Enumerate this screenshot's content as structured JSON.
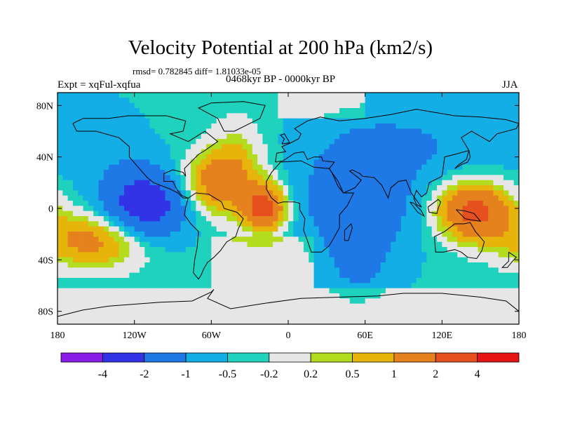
{
  "chart_data": {
    "type": "contour-map",
    "title": "Velocity Potential at 200 hPa (km2/s)",
    "stats": "rmsd= 0.782845  diff= 1.81033e-05",
    "experiment": "Expt = xqFul-xqfua",
    "period": "0468kyr BP - 0000kyr BP",
    "season": "JJA",
    "projection": "cylindrical equidistant",
    "x_axis": {
      "range": [
        -180,
        180
      ],
      "ticks": [
        -180,
        -120,
        -60,
        0,
        60,
        120,
        180
      ],
      "tick_labels": [
        "180",
        "120W",
        "60W",
        "0",
        "60E",
        "120E",
        "180"
      ]
    },
    "y_axis": {
      "range": [
        -90,
        90
      ],
      "ticks": [
        80,
        40,
        0,
        -40,
        -80
      ],
      "tick_labels": [
        "80N",
        "40N",
        "0",
        "40S",
        "80S"
      ]
    },
    "colorbar": {
      "levels": [
        -4,
        -2,
        -1,
        -0.5,
        -0.2,
        0.2,
        0.5,
        1,
        2,
        4
      ],
      "labels": [
        "-4",
        "-2",
        "-1",
        "-0.5",
        "-0.2",
        "0.2",
        "0.5",
        "1",
        "2",
        "4"
      ],
      "colors": [
        "#8a1ee6",
        "#3232e6",
        "#1e78e6",
        "#14aee6",
        "#1ed2be",
        "#e6e6e6",
        "#b4dc1e",
        "#e6b40a",
        "#e6821e",
        "#e6501e",
        "#e61414"
      ]
    },
    "anomaly_centers": [
      {
        "name": "east-pacific-low",
        "lon": -112,
        "lat": 2,
        "value": -2.5,
        "width": 32,
        "height": 28
      },
      {
        "name": "indian-ocean-low",
        "lon": 55,
        "lat": 5,
        "value": -1.4,
        "width": 40,
        "height": 38
      },
      {
        "name": "south-indian-low",
        "lon": 55,
        "lat": -45,
        "value": -0.6,
        "width": 25,
        "height": 25
      },
      {
        "name": "arctic-asia-low",
        "lon": 90,
        "lat": 50,
        "value": -0.6,
        "width": 70,
        "height": 30
      },
      {
        "name": "north-pacific-low",
        "lon": -155,
        "lat": 55,
        "value": -0.5,
        "width": 30,
        "height": 25
      },
      {
        "name": "gulf-of-guinea-high",
        "lon": -18,
        "lat": 0,
        "value": 2.8,
        "width": 16,
        "height": 18
      },
      {
        "name": "caribbean-high",
        "lon": -60,
        "lat": 20,
        "value": 1.6,
        "width": 26,
        "height": 24
      },
      {
        "name": "maritime-continent-high",
        "lon": 145,
        "lat": -2,
        "value": 2.8,
        "width": 28,
        "height": 22
      },
      {
        "name": "south-pacific-high",
        "lon": -150,
        "lat": -25,
        "value": 1.8,
        "width": 45,
        "height": 22
      },
      {
        "name": "atlantic-band-high",
        "lon": -40,
        "lat": 30,
        "value": 1.0,
        "width": 22,
        "height": 38
      }
    ],
    "background_value": -0.45
  }
}
